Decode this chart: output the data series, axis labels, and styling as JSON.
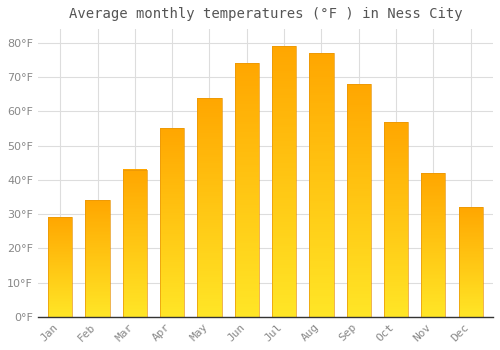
{
  "title": "Average monthly temperatures (°F ) in Ness City",
  "months": [
    "Jan",
    "Feb",
    "Mar",
    "Apr",
    "May",
    "Jun",
    "Jul",
    "Aug",
    "Sep",
    "Oct",
    "Nov",
    "Dec"
  ],
  "values": [
    29,
    34,
    43,
    55,
    64,
    74,
    79,
    77,
    68,
    57,
    42,
    32
  ],
  "bar_color_top": "#FFA500",
  "bar_color_bottom": "#FFD060",
  "bar_edge_color": "#E8950A",
  "background_color": "#FFFFFF",
  "grid_color": "#DDDDDD",
  "text_color": "#888888",
  "title_color": "#555555",
  "ylim": [
    0,
    84
  ],
  "yticks": [
    0,
    10,
    20,
    30,
    40,
    50,
    60,
    70,
    80
  ],
  "title_fontsize": 10,
  "tick_fontsize": 8,
  "bar_width": 0.65
}
